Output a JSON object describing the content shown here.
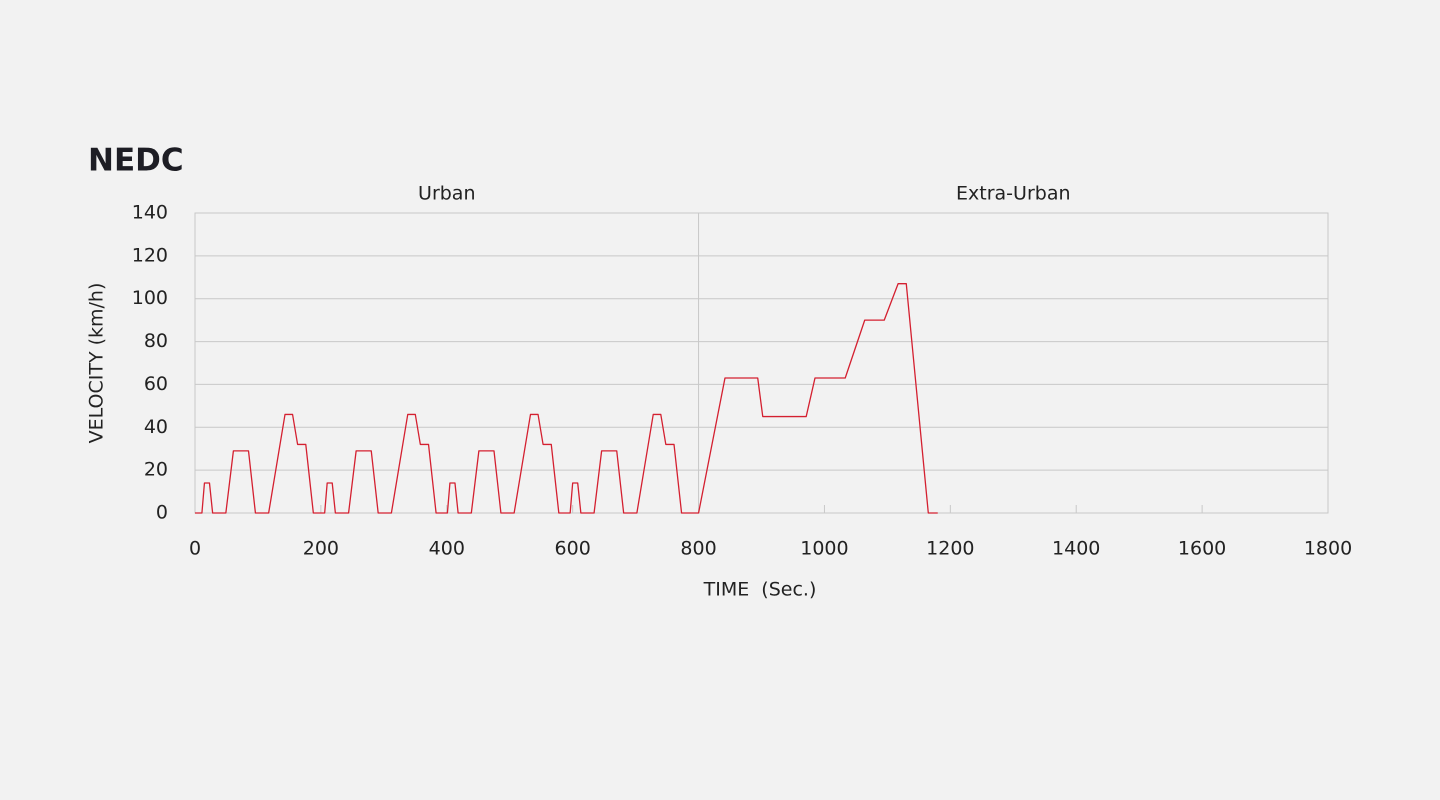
{
  "chart_data": {
    "type": "line",
    "title": "NEDC",
    "x_label": "TIME  (Sec.)",
    "y_label": "VELOCITY (km/h)",
    "regions": [
      {
        "label": "Urban",
        "range": [
          0,
          800
        ]
      },
      {
        "label": "Extra-Urban",
        "range": [
          800,
          1800
        ]
      }
    ],
    "x": [
      0,
      11,
      15,
      23,
      28,
      49,
      61,
      85,
      96,
      117,
      143,
      155,
      163,
      176,
      188,
      195,
      206,
      210,
      218,
      223,
      244,
      256,
      280,
      291,
      312,
      338,
      350,
      358,
      371,
      383,
      390,
      401,
      405,
      413,
      418,
      439,
      451,
      475,
      486,
      507,
      533,
      545,
      553,
      566,
      578,
      585,
      596,
      600,
      608,
      613,
      634,
      646,
      670,
      681,
      702,
      728,
      740,
      748,
      761,
      773,
      780,
      800,
      842,
      894,
      902,
      971,
      985,
      1033,
      1064,
      1095,
      1117,
      1130,
      1165,
      1180
    ],
    "values": [
      0,
      0,
      14,
      14,
      0,
      0,
      29,
      29,
      0,
      0,
      46,
      46,
      32,
      32,
      0,
      0,
      0,
      14,
      14,
      0,
      0,
      29,
      29,
      0,
      0,
      46,
      46,
      32,
      32,
      0,
      0,
      0,
      14,
      14,
      0,
      0,
      29,
      29,
      0,
      0,
      46,
      46,
      32,
      32,
      0,
      0,
      0,
      14,
      14,
      0,
      0,
      29,
      29,
      0,
      0,
      46,
      46,
      32,
      32,
      0,
      0,
      0,
      63,
      63,
      45,
      45,
      63,
      63,
      90,
      90,
      107,
      107,
      0,
      0
    ],
    "color": "#d42030",
    "xlim": [
      0,
      1800
    ],
    "xticks": [
      0,
      200,
      400,
      600,
      800,
      1000,
      1200,
      1400,
      1600,
      1800
    ],
    "ylim": [
      0,
      140
    ],
    "yticks": [
      0,
      20,
      40,
      60,
      80,
      100,
      120,
      140
    ],
    "grid": true
  }
}
